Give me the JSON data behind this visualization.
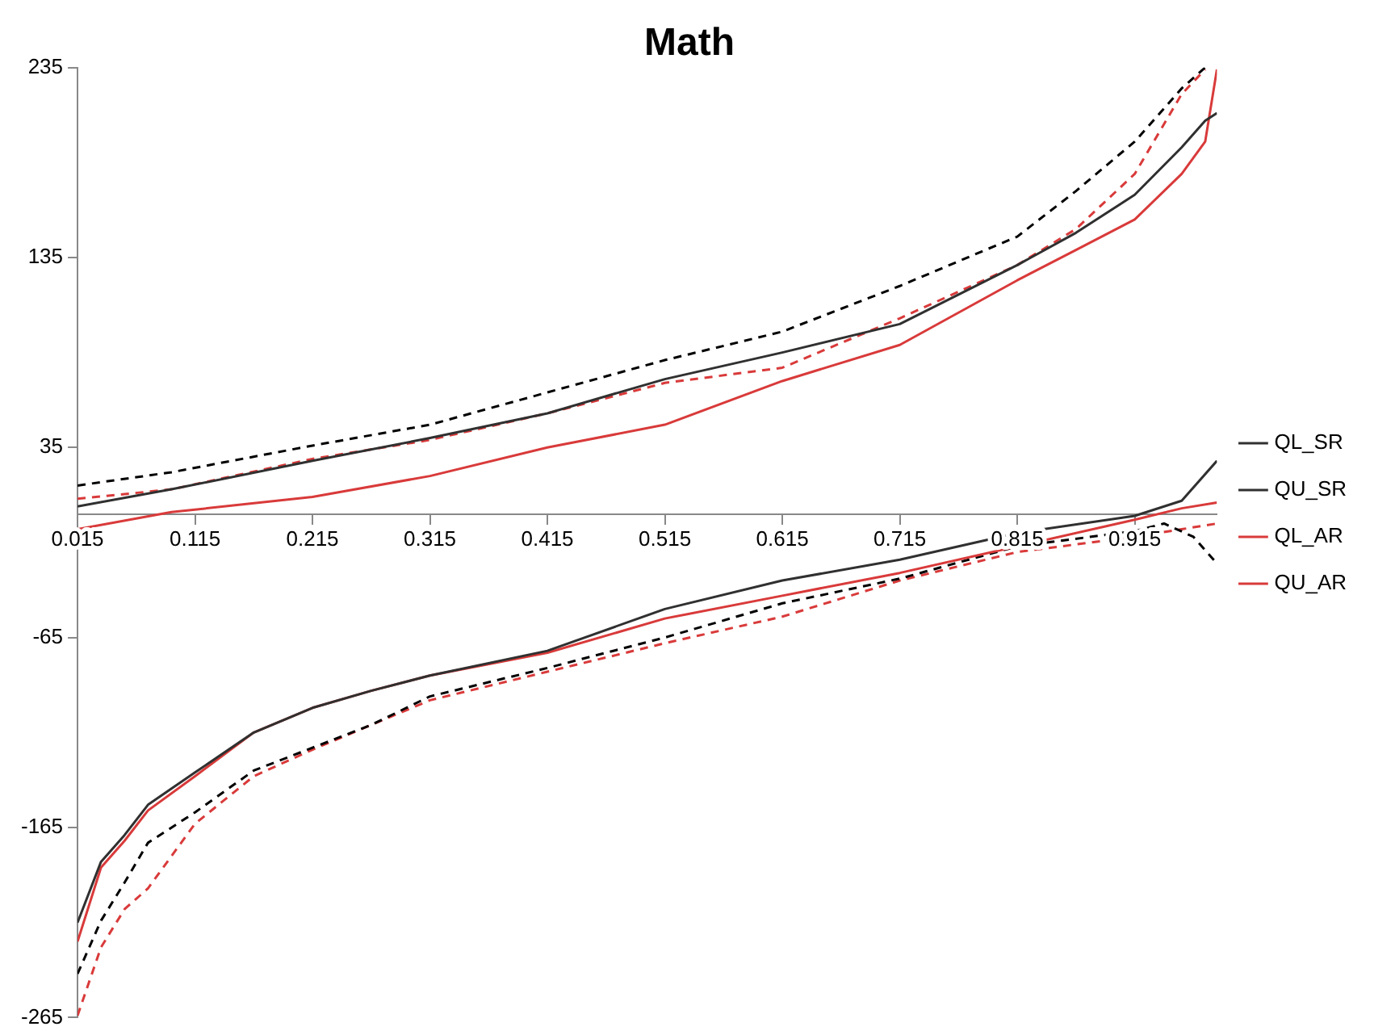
{
  "chart_data": {
    "type": "line",
    "title": "Math",
    "marker": "none",
    "grid": false,
    "legend": "right",
    "xlim": [
      0.015,
      0.985
    ],
    "xticks": [
      0.015,
      0.115,
      0.215,
      0.315,
      0.415,
      0.515,
      0.615,
      0.715,
      0.815,
      0.915
    ],
    "ylim": [
      -265,
      235
    ],
    "yticks": [
      -265,
      -165,
      -65,
      35,
      135,
      235
    ],
    "series": [
      {
        "name": "QL_SR",
        "color": "#303030",
        "line_style": "solid",
        "x": [
          0.015,
          0.035,
          0.055,
          0.075,
          0.115,
          0.165,
          0.215,
          0.265,
          0.315,
          0.415,
          0.515,
          0.615,
          0.715,
          0.815,
          0.915,
          0.955,
          0.985
        ],
        "values": [
          -215,
          -183,
          -169,
          -153,
          -136,
          -115,
          -102,
          -93,
          -85,
          -72,
          -50,
          -35,
          -24,
          -10,
          -1,
          7,
          28
        ]
      },
      {
        "name": "QU_SR",
        "color": "#303030",
        "line_style": "solid",
        "x": [
          0.015,
          0.095,
          0.215,
          0.315,
          0.415,
          0.515,
          0.615,
          0.715,
          0.815,
          0.865,
          0.915,
          0.955,
          0.975,
          0.985
        ],
        "values": [
          4,
          13,
          28,
          40,
          53,
          71,
          85,
          100,
          131,
          148,
          168,
          193,
          207,
          211
        ]
      },
      {
        "name": "QL_AR",
        "color": "#d93a3a",
        "line_style": "solid",
        "x": [
          0.015,
          0.035,
          0.055,
          0.075,
          0.115,
          0.165,
          0.215,
          0.265,
          0.315,
          0.415,
          0.515,
          0.615,
          0.715,
          0.815,
          0.915,
          0.955,
          0.985
        ],
        "values": [
          -225,
          -186,
          -172,
          -156,
          -138,
          -115,
          -102,
          -93,
          -85,
          -73,
          -55,
          -43,
          -31,
          -17,
          -3,
          3,
          6
        ]
      },
      {
        "name": "QU_AR",
        "color": "#d93a3a",
        "line_style": "solid",
        "x": [
          0.015,
          0.095,
          0.215,
          0.315,
          0.415,
          0.515,
          0.615,
          0.715,
          0.815,
          0.865,
          0.915,
          0.955,
          0.975,
          0.985
        ],
        "values": [
          -8,
          1,
          9,
          20,
          35,
          47,
          70,
          89,
          123,
          139,
          155,
          179,
          196,
          234
        ]
      },
      {
        "color": "#000000",
        "line_style": "dashed",
        "x": [
          0.015,
          0.035,
          0.055,
          0.075,
          0.115,
          0.165,
          0.215,
          0.265,
          0.315,
          0.415,
          0.515,
          0.615,
          0.715,
          0.815,
          0.915,
          0.94,
          0.965,
          0.985
        ],
        "values": [
          -242,
          -214,
          -194,
          -173,
          -157,
          -135,
          -123,
          -111,
          -96,
          -81,
          -65,
          -47,
          -34,
          -17,
          -9,
          -5,
          -12,
          -26
        ]
      },
      {
        "color": "#000000",
        "line_style": "dashed",
        "x": [
          0.015,
          0.095,
          0.215,
          0.315,
          0.415,
          0.515,
          0.615,
          0.715,
          0.815,
          0.865,
          0.915,
          0.955,
          0.975
        ],
        "values": [
          15,
          22,
          36,
          47,
          64,
          81,
          96,
          120,
          146,
          170,
          196,
          224,
          235
        ]
      },
      {
        "color": "#d93a3a",
        "line_style": "dashed",
        "x": [
          0.015,
          0.035,
          0.055,
          0.075,
          0.115,
          0.165,
          0.215,
          0.265,
          0.315,
          0.415,
          0.515,
          0.615,
          0.715,
          0.815,
          0.915,
          0.955,
          0.985
        ],
        "values": [
          -264,
          -228,
          -208,
          -197,
          -163,
          -138,
          -124,
          -111,
          -98,
          -83,
          -68,
          -54,
          -35,
          -20,
          -12,
          -8,
          -5
        ]
      },
      {
        "color": "#d93a3a",
        "line_style": "dashed",
        "x": [
          0.015,
          0.095,
          0.215,
          0.315,
          0.415,
          0.515,
          0.615,
          0.715,
          0.815,
          0.865,
          0.915,
          0.955,
          0.975
        ],
        "values": [
          8,
          13,
          29,
          39,
          53,
          69,
          77,
          103,
          131,
          150,
          179,
          221,
          234
        ]
      }
    ]
  }
}
